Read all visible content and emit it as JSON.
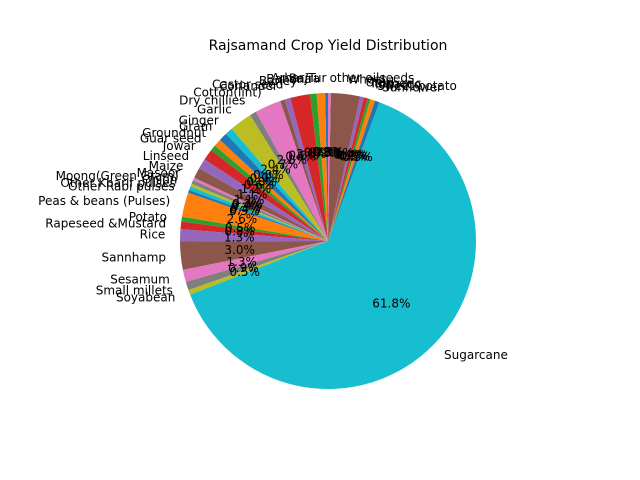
{
  "chart_data": {
    "type": "pie",
    "title": "Rajsamand Crop Yield Distribution",
    "start_angle_deg": 90,
    "counterclockwise": true,
    "colors": [
      "#1f77b4",
      "#ff7f0e",
      "#2ca02c",
      "#d62728",
      "#9467bd",
      "#8c564b",
      "#e377c2",
      "#7f7f7f",
      "#bcbd22",
      "#17becf"
    ],
    "slices": [
      {
        "label": "Arhar/Tur",
        "value": 0.3,
        "pct_label": "0.3%"
      },
      {
        "label": "Bajra",
        "value": 0.9,
        "pct_label": "0.9%"
      },
      {
        "label": "Banana",
        "value": 0.7,
        "pct_label": "0.7%"
      },
      {
        "label": "Barley",
        "value": 2.1,
        "pct_label": "2.1%"
      },
      {
        "label": "Castor seed",
        "value": 0.6,
        "pct_label": "0.6%"
      },
      {
        "label": "Coriander",
        "value": 0.5,
        "pct_label": "0.5%"
      },
      {
        "label": "Cotton(lint)",
        "value": 2.8,
        "pct_label": "2.8%"
      },
      {
        "label": "Dry chillies",
        "value": 0.7,
        "pct_label": "0.7%"
      },
      {
        "label": "Garlic",
        "value": 2.4,
        "pct_label": "2.4%"
      },
      {
        "label": "Ginger",
        "value": 0.8,
        "pct_label": "0.8%"
      },
      {
        "label": "Gram",
        "value": 0.9,
        "pct_label": "0.9%"
      },
      {
        "label": "Groundnut",
        "value": 0.8,
        "pct_label": "0.8%"
      },
      {
        "label": "Guar seed",
        "value": 0.6,
        "pct_label": "0.6%"
      },
      {
        "label": "Jowar",
        "value": 1.2,
        "pct_label": "1.2%"
      },
      {
        "label": "Linseed",
        "value": 1.1,
        "pct_label": "1.1%"
      },
      {
        "label": "Maize",
        "value": 1.1,
        "pct_label": "1.1%"
      },
      {
        "label": "Masoor",
        "value": 0.3,
        "pct_label": "0.3%"
      },
      {
        "label": "Moong(Green Gram)",
        "value": 0.4,
        "pct_label": "0.4%"
      },
      {
        "label": "Onion",
        "value": 0.3,
        "pct_label": "0.3%"
      },
      {
        "label": "Other Kharif pulses",
        "value": 0.4,
        "pct_label": "0.4%"
      },
      {
        "label": "Other Rabi pulses",
        "value": 0.3,
        "pct_label": "0.3%"
      },
      {
        "label": "Peas & beans (Pulses)",
        "value": 2.6,
        "pct_label": "2.6%"
      },
      {
        "label": "Potato",
        "value": 0.5,
        "pct_label": "0.5%"
      },
      {
        "label": "Rapeseed &Mustard",
        "value": 0.8,
        "pct_label": "0.8%"
      },
      {
        "label": "Rice",
        "value": 1.3,
        "pct_label": "1.3%"
      },
      {
        "label": "Sannhamp",
        "value": 3.0,
        "pct_label": "3.0%"
      },
      {
        "label": "Sesamum",
        "value": 1.3,
        "pct_label": "1.3%"
      },
      {
        "label": "Small millets",
        "value": 0.9,
        "pct_label": "0.9%"
      },
      {
        "label": "Soyabean",
        "value": 0.5,
        "pct_label": "0.5%"
      },
      {
        "label": "Sugarcane",
        "value": 61.8,
        "pct_label": "61.8%"
      },
      {
        "label": "Sunflower",
        "value": 0.5,
        "pct_label": "0.5%"
      },
      {
        "label": "Sweet potato",
        "value": 0.5,
        "pct_label": "0.5%"
      },
      {
        "label": "Tobacco",
        "value": 0.3,
        "pct_label": "0.3%"
      },
      {
        "label": "Turmeric",
        "value": 0.4,
        "pct_label": "0.4%"
      },
      {
        "label": "Urad",
        "value": 0.4,
        "pct_label": "0.4%"
      },
      {
        "label": "Wheat",
        "value": 3.1,
        "pct_label": "3.1%"
      },
      {
        "label": "other oilseeds",
        "value": 0.3,
        "pct_label": "0.3%"
      }
    ]
  }
}
